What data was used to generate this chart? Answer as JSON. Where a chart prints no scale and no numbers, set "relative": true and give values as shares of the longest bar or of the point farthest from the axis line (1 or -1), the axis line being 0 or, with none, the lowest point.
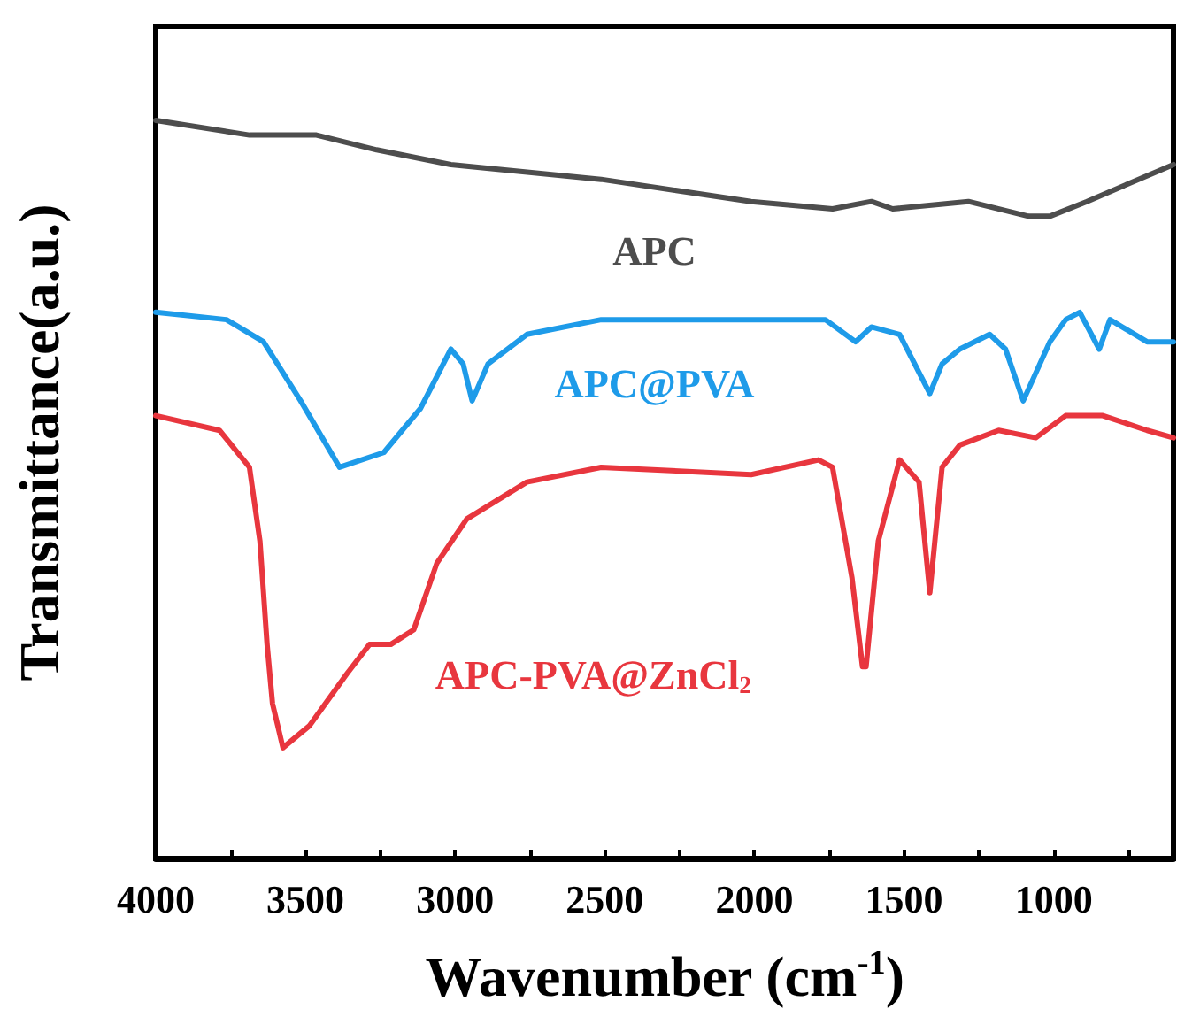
{
  "chart_data": {
    "type": "line",
    "relative": true,
    "xlabel": "Wavenumber (cm$^{-1}$)",
    "ylabel": "Transmittance(a.u.)",
    "xlim": [
      4000,
      600
    ],
    "xticks": [
      4000,
      {
        "value": 3750,
        "label": null
      },
      3500,
      {
        "value": 3250,
        "label": null
      },
      3000,
      {
        "value": 2750,
        "label": null
      },
      2500,
      {
        "value": 2250,
        "label": null
      },
      2000,
      {
        "value": 1750,
        "label": null
      },
      1500,
      {
        "value": 1250,
        "label": null
      },
      1000,
      {
        "value": 750,
        "label": null
      }
    ],
    "grid": false,
    "legend": false,
    "marker": "none",
    "line_style": "solid",
    "series": [
      {
        "name": "APC",
        "color": "#4d4d4d",
        "x": [
          4000,
          3687,
          3463,
          3262,
          3014,
          2512,
          2011,
          1739,
          1609,
          1538,
          1285,
          1084,
          1013,
          889,
          600
        ],
        "values": [
          1.0,
          0.98,
          0.98,
          0.96,
          0.94,
          0.92,
          0.89,
          0.88,
          0.89,
          0.88,
          0.89,
          0.87,
          0.87,
          0.89,
          0.94
        ]
      },
      {
        "name": "APC@PVA",
        "color": "#1e9be9",
        "x": [
          4000,
          3764,
          3640,
          3516,
          3386,
          3238,
          3115,
          3014,
          2973,
          2943,
          2890,
          2760,
          2512,
          2265,
          1763,
          1662,
          1609,
          1515,
          1414,
          1373,
          1314,
          1214,
          1161,
          1102,
          1013,
          960,
          913,
          848,
          812,
          688,
          600
        ],
        "values": [
          0.74,
          0.73,
          0.7,
          0.62,
          0.53,
          0.55,
          0.61,
          0.69,
          0.67,
          0.62,
          0.67,
          0.71,
          0.73,
          0.73,
          0.73,
          0.7,
          0.72,
          0.71,
          0.63,
          0.67,
          0.69,
          0.71,
          0.69,
          0.62,
          0.7,
          0.73,
          0.74,
          0.69,
          0.73,
          0.7,
          0.7
        ]
      },
      {
        "name": "APC-PVA@ZnCl$_{2}$",
        "color": "#e8363e",
        "x": [
          4000,
          3787,
          3687,
          3652,
          3628,
          3610,
          3575,
          3486,
          3362,
          3286,
          3215,
          3138,
          3061,
          2961,
          2760,
          2512,
          2011,
          1786,
          1739,
          1674,
          1639,
          1627,
          1586,
          1515,
          1450,
          1414,
          1373,
          1314,
          1184,
          1060,
          960,
          836,
          688,
          600
        ],
        "values": [
          0.6,
          0.58,
          0.53,
          0.43,
          0.29,
          0.21,
          0.15,
          0.18,
          0.25,
          0.29,
          0.29,
          0.31,
          0.4,
          0.46,
          0.51,
          0.53,
          0.52,
          0.54,
          0.53,
          0.38,
          0.26,
          0.26,
          0.43,
          0.54,
          0.51,
          0.36,
          0.53,
          0.56,
          0.58,
          0.57,
          0.6,
          0.6,
          0.58,
          0.57
        ]
      }
    ]
  }
}
